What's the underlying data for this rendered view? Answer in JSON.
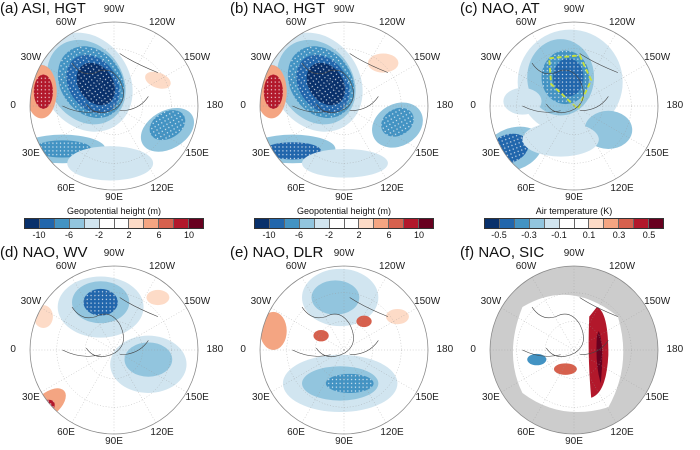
{
  "panels": [
    {
      "title": "(a) ASI, HGT",
      "colorbar": "geopotential"
    },
    {
      "title": "(b) NAO, HGT",
      "colorbar": "geopotential"
    },
    {
      "title": "(c) NAO, AT",
      "colorbar": "temperature"
    },
    {
      "title": "(d) NAO, WV"
    },
    {
      "title": "(e) NAO, DLR"
    },
    {
      "title": "(f) NAO, SIC"
    }
  ],
  "longitude_labels": {
    "top": "90W",
    "top_left": "60W",
    "top_right": "120W",
    "left_upper": "30W",
    "right_upper": "150W",
    "left": "0",
    "right": "180",
    "left_lower": "30E",
    "right_lower": "150E",
    "bottom_left": "60E",
    "bottom_right": "120E",
    "bottom": "90E"
  },
  "colorbars": {
    "geopotential": {
      "title": "Geopotential height (m)",
      "ticks": [
        "-10",
        "-6",
        "-2",
        "2",
        "6",
        "10"
      ]
    },
    "temperature": {
      "title": "Air temperature (K)",
      "ticks": [
        "-0.5",
        "-0.3",
        "-0.1",
        "0.1",
        "0.3",
        "0.5"
      ]
    }
  },
  "colors": {
    "palette": [
      "#08306b",
      "#2166ac",
      "#4393c3",
      "#92c5de",
      "#d1e5f0",
      "#ffffff",
      "#ffffff",
      "#fddbc7",
      "#f4a582",
      "#d6604d",
      "#b2182b",
      "#67001f"
    ],
    "land_mask": "#cccccc",
    "box_outline": "#c8e03c"
  }
}
